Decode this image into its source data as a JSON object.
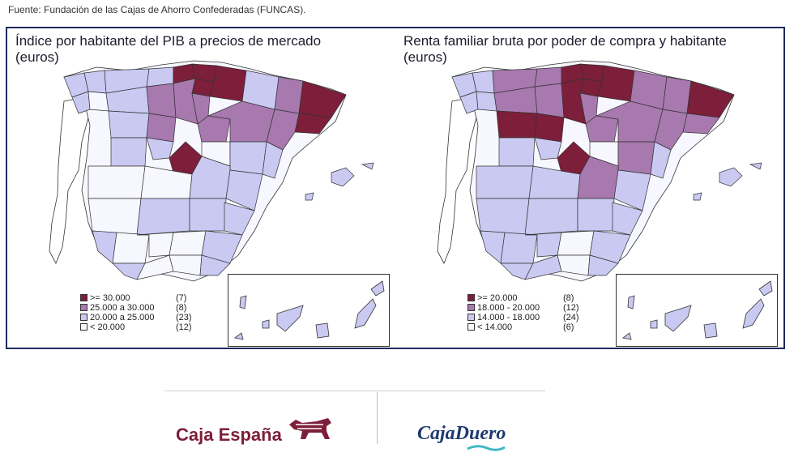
{
  "source": "Fuente: Fundación de las Cajas de Ahorro Confederadas (FUNCAS).",
  "colors": {
    "c1": "#7d1e3a",
    "c2": "#a779ae",
    "c3": "#c9c9f2",
    "c4": "#f7f7ff",
    "border": "#1b2a5e"
  },
  "maps": [
    {
      "title_line1": "Índice por habitante del PIB a precios de mercado",
      "title_line2": "(euros)",
      "legend": [
        {
          "label": ">= 30.000",
          "count": "(7)",
          "color": "#7d1e3a"
        },
        {
          "label": "25.000 a 30.000",
          "count": "(8)",
          "color": "#a779ae"
        },
        {
          "label": "20.000 a 25.000",
          "count": "(23)",
          "color": "#c9c9f2"
        },
        {
          "label": "< 20.000",
          "count": "(12)",
          "color": "#f7f7ff"
        }
      ]
    },
    {
      "title_line1": "Renta familiar bruta por poder de compra y habitante",
      "title_line2": "(euros)",
      "legend": [
        {
          "label": ">= 20.000",
          "count": "(8)",
          "color": "#7d1e3a"
        },
        {
          "label": "18.000 - 20.000",
          "count": "(12)",
          "color": "#a779ae"
        },
        {
          "label": "14.000 - 18.000",
          "count": "(24)",
          "color": "#c9c9f2"
        },
        {
          "label": "< 14.000",
          "count": "(6)",
          "color": "#f7f7ff"
        }
      ]
    }
  ],
  "logos": {
    "left": "Caja España",
    "right": "CajaDuero"
  }
}
